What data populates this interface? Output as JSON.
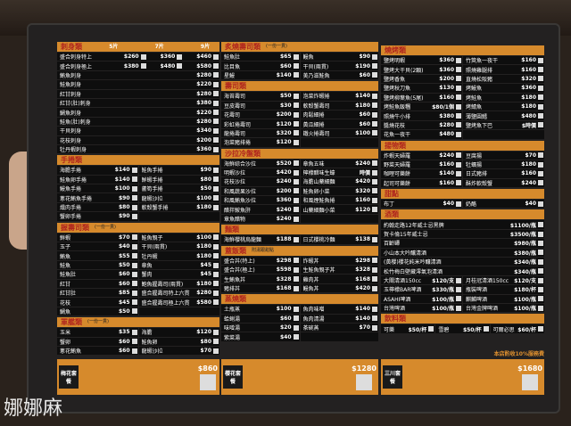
{
  "watermark": "娜娜麻",
  "colors": {
    "header": "#d68a2c",
    "header_text": "#b0261e",
    "row": "#0e0e0e",
    "board": "#232121"
  },
  "columns": [
    [
      {
        "title": "刺身類",
        "cols": 1,
        "price_heads": [
          "5片",
          "7片",
          "9片"
        ],
        "items": [
          {
            "name": "盛合刺身特上",
            "price": "$260",
            "extra": [
              "$360",
              "$460"
            ]
          },
          {
            "name": "盛合刺身極上",
            "price": "$380",
            "extra": [
              "$480",
              "$580"
            ]
          },
          {
            "name": "鮪魚刺身",
            "price": "$280"
          },
          {
            "name": "鮭魚刺身",
            "price": "$220"
          },
          {
            "name": "紅甘刺身",
            "price": "$280"
          },
          {
            "name": "紅甘(肚)刺身",
            "price": "$380"
          },
          {
            "name": "鯛魚刺身",
            "price": "$220"
          },
          {
            "name": "鮭魚(肚)刺身",
            "price": "$280"
          },
          {
            "name": "干貝刺身",
            "price": "$340"
          },
          {
            "name": "花枝刺身",
            "price": "$200"
          },
          {
            "name": "牡丹蝦刺身",
            "price": "$360"
          }
        ]
      },
      {
        "title": "手捲類",
        "cols": 2,
        "items": [
          {
            "name": "海膽手捲",
            "price": "$140"
          },
          {
            "name": "鮭魚手捲",
            "price": "$90"
          },
          {
            "name": "鮭魚卵手捲",
            "price": "$140"
          },
          {
            "name": "鮮蝦手捲",
            "price": "$80"
          },
          {
            "name": "鰻魚手捲",
            "price": "$100"
          },
          {
            "name": "蘆筍手捲",
            "price": "$50"
          },
          {
            "name": "蔥花鮪魚手捲",
            "price": "$90"
          },
          {
            "name": "龍蝦沙拉",
            "price": "$100"
          },
          {
            "name": "燻肉手捲",
            "price": "$80"
          },
          {
            "name": "軟殼蟹手捲",
            "price": "$180"
          },
          {
            "name": "蟹卵手捲",
            "price": "$90"
          },
          {
            "name": "",
            "price": ""
          }
        ]
      },
      {
        "title": "握壽司類",
        "note": "(一份一貫)",
        "cols": 2,
        "items": [
          {
            "name": "鮮蝦",
            "price": "$70"
          },
          {
            "name": "鮭魚親子",
            "price": "$100"
          },
          {
            "name": "玉子",
            "price": "$40"
          },
          {
            "name": "干貝(兩貫)",
            "price": "$180"
          },
          {
            "name": "鮪魚",
            "price": "$55"
          },
          {
            "name": "牡丹蝦",
            "price": "$180"
          },
          {
            "name": "鮭魚",
            "price": "$50"
          },
          {
            "name": "章魚",
            "price": "$45"
          },
          {
            "name": "鮭魚肚",
            "price": "$60"
          },
          {
            "name": "蟹肉",
            "price": "$45"
          },
          {
            "name": "紅甘",
            "price": "$60"
          },
          {
            "name": "鮑魚握壽司(兩貫)",
            "price": "$180"
          },
          {
            "name": "紅甘肚",
            "price": "$85"
          },
          {
            "name": "盛合握壽司特上六貫",
            "price": "$280"
          },
          {
            "name": "花枝",
            "price": "$45"
          },
          {
            "name": "盛合握壽司極上六貫",
            "price": "$580"
          },
          {
            "name": "鯛魚",
            "price": "$50"
          },
          {
            "name": "",
            "price": ""
          }
        ]
      },
      {
        "title": "軍艦類",
        "note": "(一份一貫)",
        "cols": 2,
        "items": [
          {
            "name": "玉米",
            "price": "$35"
          },
          {
            "name": "海膽",
            "price": "$120"
          },
          {
            "name": "蟹卵",
            "price": "$60"
          },
          {
            "name": "鮭魚卵",
            "price": "$80"
          },
          {
            "name": "蔥花鮪魚",
            "price": "$60"
          },
          {
            "name": "龍蝦沙拉",
            "price": "$70"
          }
        ]
      }
    ],
    [
      {
        "title": "炙燒壽司類",
        "note": "(一份一貫)",
        "cols": 2,
        "items": [
          {
            "name": "鮭魚肚",
            "price": "$65"
          },
          {
            "name": "鰻魚",
            "price": "$90"
          },
          {
            "name": "比目魚",
            "price": "$60"
          },
          {
            "name": "干貝(兩貫)",
            "price": "$190"
          },
          {
            "name": "星鰻",
            "price": "$140"
          },
          {
            "name": "美乃滋鮭魚",
            "price": "$60"
          }
        ]
      },
      {
        "title": "壽司類",
        "cols": 2,
        "items": [
          {
            "name": "海苔壽司",
            "price": "$50"
          },
          {
            "name": "泡菜炸蝦捲",
            "price": "$140"
          },
          {
            "name": "豆皮壽司",
            "price": "$30"
          },
          {
            "name": "軟殼蟹壽司",
            "price": "$180"
          },
          {
            "name": "花壽司",
            "price": "$200"
          },
          {
            "name": "肉鬆細捲",
            "price": "$60"
          },
          {
            "name": "彩虹捲壽司",
            "price": "$120"
          },
          {
            "name": "黃瓜細捲",
            "price": "$60"
          },
          {
            "name": "龍捲壽司",
            "price": "$320"
          },
          {
            "name": "鐵火捲壽司",
            "price": "$100"
          },
          {
            "name": "泡菜豬排捲",
            "price": "$120"
          },
          {
            "name": "",
            "price": ""
          }
        ]
      },
      {
        "title": "沙拉冷盤類",
        "cols": 2,
        "items": [
          {
            "name": "海鮮綜合沙拉",
            "price": "$520"
          },
          {
            "name": "章魚五味",
            "price": "$240"
          },
          {
            "name": "明蝦沙拉",
            "price": "$420"
          },
          {
            "name": "檸檬醋味生蠔",
            "price": "時價"
          },
          {
            "name": "花枝沙拉",
            "price": "$240"
          },
          {
            "name": "海膽山藥細麵",
            "price": "$420"
          },
          {
            "name": "和風蔬果沙拉",
            "price": "$200"
          },
          {
            "name": "鮭魚卵小菜",
            "price": "$320"
          },
          {
            "name": "和風鮪魚沙拉",
            "price": "$360"
          },
          {
            "name": "和風煙鮭魚捲",
            "price": "$160"
          },
          {
            "name": "醋拌鮟魚肝",
            "price": "$240"
          },
          {
            "name": "山藥細麵小菜",
            "price": "$120"
          },
          {
            "name": "章魚醋物",
            "price": "$240"
          },
          {
            "name": "",
            "price": ""
          }
        ]
      },
      {
        "title": "麵類",
        "cols": 2,
        "items": [
          {
            "name": "海鮮櫻桃烏龍麵",
            "price": "$188"
          },
          {
            "name": "日式櫻桃冷麵",
            "price": "$138"
          }
        ]
      },
      {
        "title": "蓋飯類",
        "note": "附湯跟甜點",
        "cols": 2,
        "items": [
          {
            "name": "盛合丼(特上)",
            "price": "$298"
          },
          {
            "name": "炸蝦丼",
            "price": "$298"
          },
          {
            "name": "盛合丼(極上)",
            "price": "$598"
          },
          {
            "name": "生鮭魚親子丼",
            "price": "$328"
          },
          {
            "name": "生鮪魚丼",
            "price": "$328"
          },
          {
            "name": "雞肉丼",
            "price": "$168"
          },
          {
            "name": "豬排丼",
            "price": "$168"
          },
          {
            "name": "鰻魚丼",
            "price": "$420"
          }
        ]
      },
      {
        "title": "蒸燒類",
        "cols": 2,
        "items": [
          {
            "name": "土瓶蒸",
            "price": "$100"
          },
          {
            "name": "魚肉味噌",
            "price": "$140"
          },
          {
            "name": "蛤蜊湯",
            "price": "$60"
          },
          {
            "name": "魚肉清湯",
            "price": "$140"
          },
          {
            "name": "味噌湯",
            "price": "$20"
          },
          {
            "name": "茶碗蒸",
            "price": "$70"
          },
          {
            "name": "紫菜湯",
            "price": "$40"
          },
          {
            "name": "",
            "price": ""
          }
        ]
      }
    ],
    [
      {
        "title": "燒烤類",
        "cols": 2,
        "items": [
          {
            "name": "鹽烤明蝦",
            "price": "$360"
          },
          {
            "name": "竹筴魚一夜干",
            "price": "$160"
          },
          {
            "name": "鹽烤大干貝(2顆)",
            "price": "$360"
          },
          {
            "name": "照燒雞腿排",
            "price": "$160"
          },
          {
            "name": "鹽烤香魚",
            "price": "$200"
          },
          {
            "name": "直燒松阪豬",
            "price": "$320"
          },
          {
            "name": "鹽烤秋刀魚",
            "price": "$130"
          },
          {
            "name": "烤鰻魚",
            "price": "$360"
          },
          {
            "name": "鹽烤柳葉魚(5尾)",
            "price": "$160"
          },
          {
            "name": "烤鮭魚",
            "price": "$180"
          },
          {
            "name": "烤鮭魚飯糰",
            "price": "$80/1個"
          },
          {
            "name": "烤鯖魚",
            "price": "$180"
          },
          {
            "name": "照燒牛小排",
            "price": "$380"
          },
          {
            "name": "薄鹽圓鱈",
            "price": "$480"
          },
          {
            "name": "醬燒花枝",
            "price": "$280"
          },
          {
            "name": "鹽烤魚下巴",
            "price": "$時價"
          },
          {
            "name": "花魚一夜干",
            "price": "$480"
          },
          {
            "name": "",
            "price": ""
          }
        ]
      },
      {
        "title": "揚物類",
        "cols": 2,
        "items": [
          {
            "name": "炸蝦天婦羅",
            "price": "$240"
          },
          {
            "name": "豆腐揚",
            "price": "$70"
          },
          {
            "name": "野菜天婦羅",
            "price": "$160"
          },
          {
            "name": "牡蠣揚",
            "price": "$180"
          },
          {
            "name": "咖哩可樂餅",
            "price": "$140"
          },
          {
            "name": "日式豬排",
            "price": "$160"
          },
          {
            "name": "起司可樂餅",
            "price": "$160"
          },
          {
            "name": "酥炸軟殼蟹",
            "price": "$240"
          }
        ]
      },
      {
        "title": "甜點",
        "cols": 2,
        "items": [
          {
            "name": "布丁",
            "price": "$40"
          },
          {
            "name": "奶酪",
            "price": "$40"
          }
        ]
      },
      {
        "title": "酒類",
        "cols": 1,
        "items": [
          {
            "name": "約翰走路12年威士忌黑牌",
            "price": "$1100/瓶"
          },
          {
            "name": "賀卡倫15年威士忌",
            "price": "$3500/瓶"
          },
          {
            "name": "百齡罈",
            "price": "$980/瓶"
          },
          {
            "name": "小山本大吟釀清酒",
            "price": "$380/瓶"
          },
          {
            "name": "(黃櫻)櫻花純米吟釀清酒",
            "price": "$340/瓶"
          },
          {
            "name": "松竹梅白壁藏澪氣泡清酒",
            "price": "$340/瓶"
          }
        ]
      },
      {
        "title": "",
        "cols": 2,
        "items": [
          {
            "name": "大關清酒150cc",
            "price": "$120/支"
          },
          {
            "name": "月桂冠清酒150cc",
            "price": "$120/支"
          },
          {
            "name": "玉檸檬BAR啤酒",
            "price": "$330/瓶"
          },
          {
            "name": "瓶裝啤酒",
            "price": "$180/杯"
          },
          {
            "name": "ASAHI啤酒",
            "price": "$100/瓶"
          },
          {
            "name": "麒麟啤酒",
            "price": "$100/瓶"
          },
          {
            "name": "台灣啤酒",
            "price": "$100/瓶"
          },
          {
            "name": "台灣金牌啤酒",
            "price": "$100/瓶"
          }
        ]
      },
      {
        "title": "飲料類",
        "cols": 3,
        "items": [
          {
            "name": "可樂",
            "price": "$50/杯"
          },
          {
            "name": "雪碧",
            "price": "$50/杯"
          },
          {
            "name": "可爾必思",
            "price": "$60/杯"
          }
        ]
      }
    ]
  ],
  "service_note": "本店酌收10%服務費",
  "sets": [
    {
      "name": "梅花套餐",
      "price": "$860"
    },
    {
      "name": "櫻花套餐",
      "price": "$1280"
    },
    {
      "name": "三川套餐",
      "price": "$1680"
    }
  ]
}
